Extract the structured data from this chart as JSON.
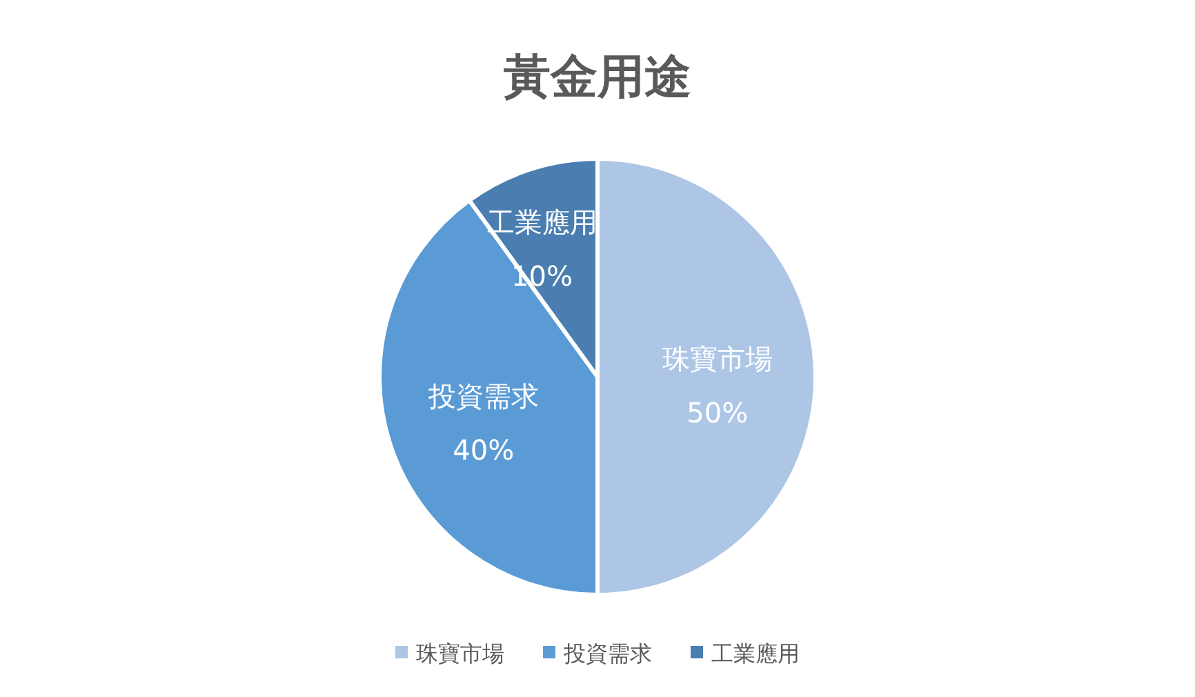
{
  "chart_data": {
    "type": "pie",
    "title": "黃金用途",
    "categories": [
      "珠寶市場",
      "投資需求",
      "工業應用"
    ],
    "values": [
      50,
      40,
      10
    ],
    "colors": [
      "#adc6e6",
      "#5b9bd5",
      "#4a7eb0"
    ],
    "value_labels": [
      "50%",
      "40%",
      "10%"
    ],
    "legend": "bottom"
  }
}
